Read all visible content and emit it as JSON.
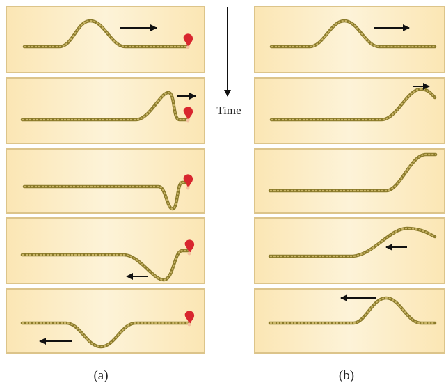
{
  "time_label": "Time",
  "captions": [
    "(a)",
    "(b)"
  ]
}
